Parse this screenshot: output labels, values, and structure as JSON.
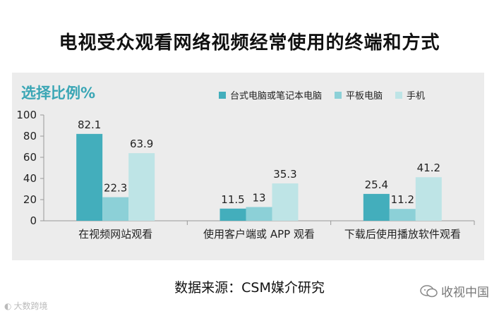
{
  "header": {
    "title": "电视受众观看网络视频经常使用的终端和方式"
  },
  "footer": {
    "source": "数据来源：CSM媒介研究",
    "brand": "收视中国",
    "watermark": "大数跨境"
  },
  "colors": {
    "series1": "#43aebc",
    "series2": "#8cd0d7",
    "series3": "#bee4e6"
  },
  "chart_data": {
    "type": "bar",
    "title": "选择比例%",
    "categories": [
      "在视频网站观看",
      "使用客户端或 APP 观看",
      "下载后使用播放软件观看"
    ],
    "series": [
      {
        "name": "台式电脑或笔记本电脑",
        "values": [
          82.1,
          11.5,
          25.4
        ]
      },
      {
        "name": "平板电脑",
        "values": [
          22.3,
          13,
          11.2
        ]
      },
      {
        "name": "手机",
        "values": [
          63.9,
          35.3,
          41.2
        ]
      }
    ],
    "ylim": [
      0,
      100
    ],
    "yticks": [
      0,
      20,
      40,
      60,
      80,
      100
    ],
    "legend": "top-right",
    "grid": false
  }
}
